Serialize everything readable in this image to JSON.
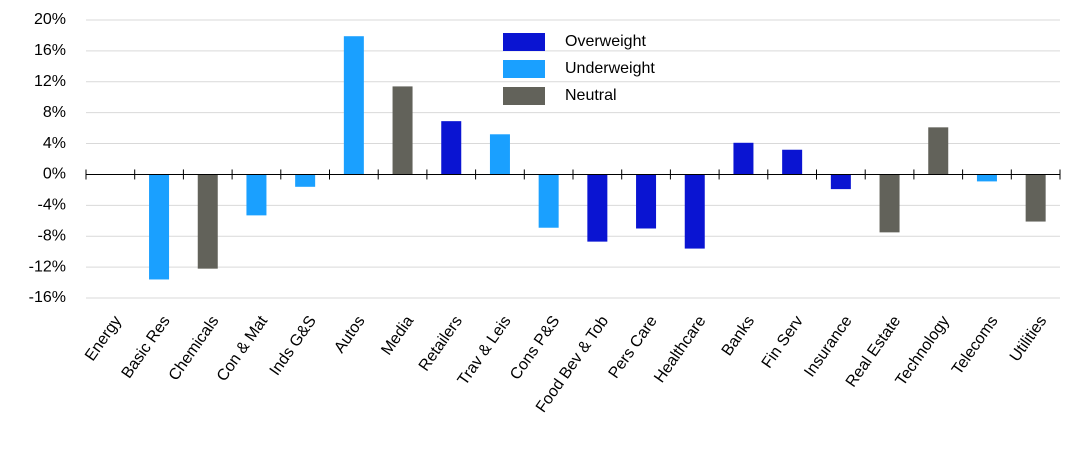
{
  "chart_data": {
    "type": "bar",
    "categories": [
      "Energy",
      "Basic Res",
      "Chemicals",
      "Con & Mat",
      "Inds G&S",
      "Autos",
      "Media",
      "Retailers",
      "Trav & Leis",
      "Cons P&S",
      "Food Bev & Tob",
      "Pers Care",
      "Healthcare",
      "Banks",
      "Fin Serv",
      "Insurance",
      "Real Estate",
      "Technology",
      "Telecoms",
      "Utilities"
    ],
    "series": [
      {
        "name": "Overweight",
        "color": "#0a14d2",
        "values": [
          null,
          null,
          null,
          null,
          null,
          null,
          null,
          6.9,
          null,
          null,
          -8.7,
          -7.0,
          -9.6,
          4.1,
          3.2,
          -1.9,
          null,
          null,
          null,
          null
        ]
      },
      {
        "name": "Underweight",
        "color": "#1aa0ff",
        "values": [
          null,
          -13.6,
          null,
          -5.3,
          -1.6,
          17.9,
          null,
          null,
          5.2,
          -6.9,
          null,
          null,
          null,
          null,
          null,
          null,
          null,
          null,
          -0.9,
          null
        ]
      },
      {
        "name": "Neutral",
        "color": "#62625a",
        "values": [
          null,
          null,
          -12.2,
          null,
          null,
          null,
          11.4,
          null,
          null,
          null,
          null,
          null,
          null,
          null,
          null,
          null,
          -7.5,
          6.1,
          null,
          -6.1
        ]
      }
    ],
    "ylim": [
      -16,
      20
    ],
    "yticks": [
      {
        "value": -16,
        "label": "-16%"
      },
      {
        "value": -12,
        "label": "-12%"
      },
      {
        "value": -8,
        "label": "-8%"
      },
      {
        "value": -4,
        "label": "-4%"
      },
      {
        "value": 0,
        "label": "0%"
      },
      {
        "value": 4,
        "label": "4%"
      },
      {
        "value": 8,
        "label": "8%"
      },
      {
        "value": 12,
        "label": "12%"
      },
      {
        "value": 16,
        "label": "16%"
      },
      {
        "value": 20,
        "label": "20%"
      }
    ],
    "grid": true
  }
}
